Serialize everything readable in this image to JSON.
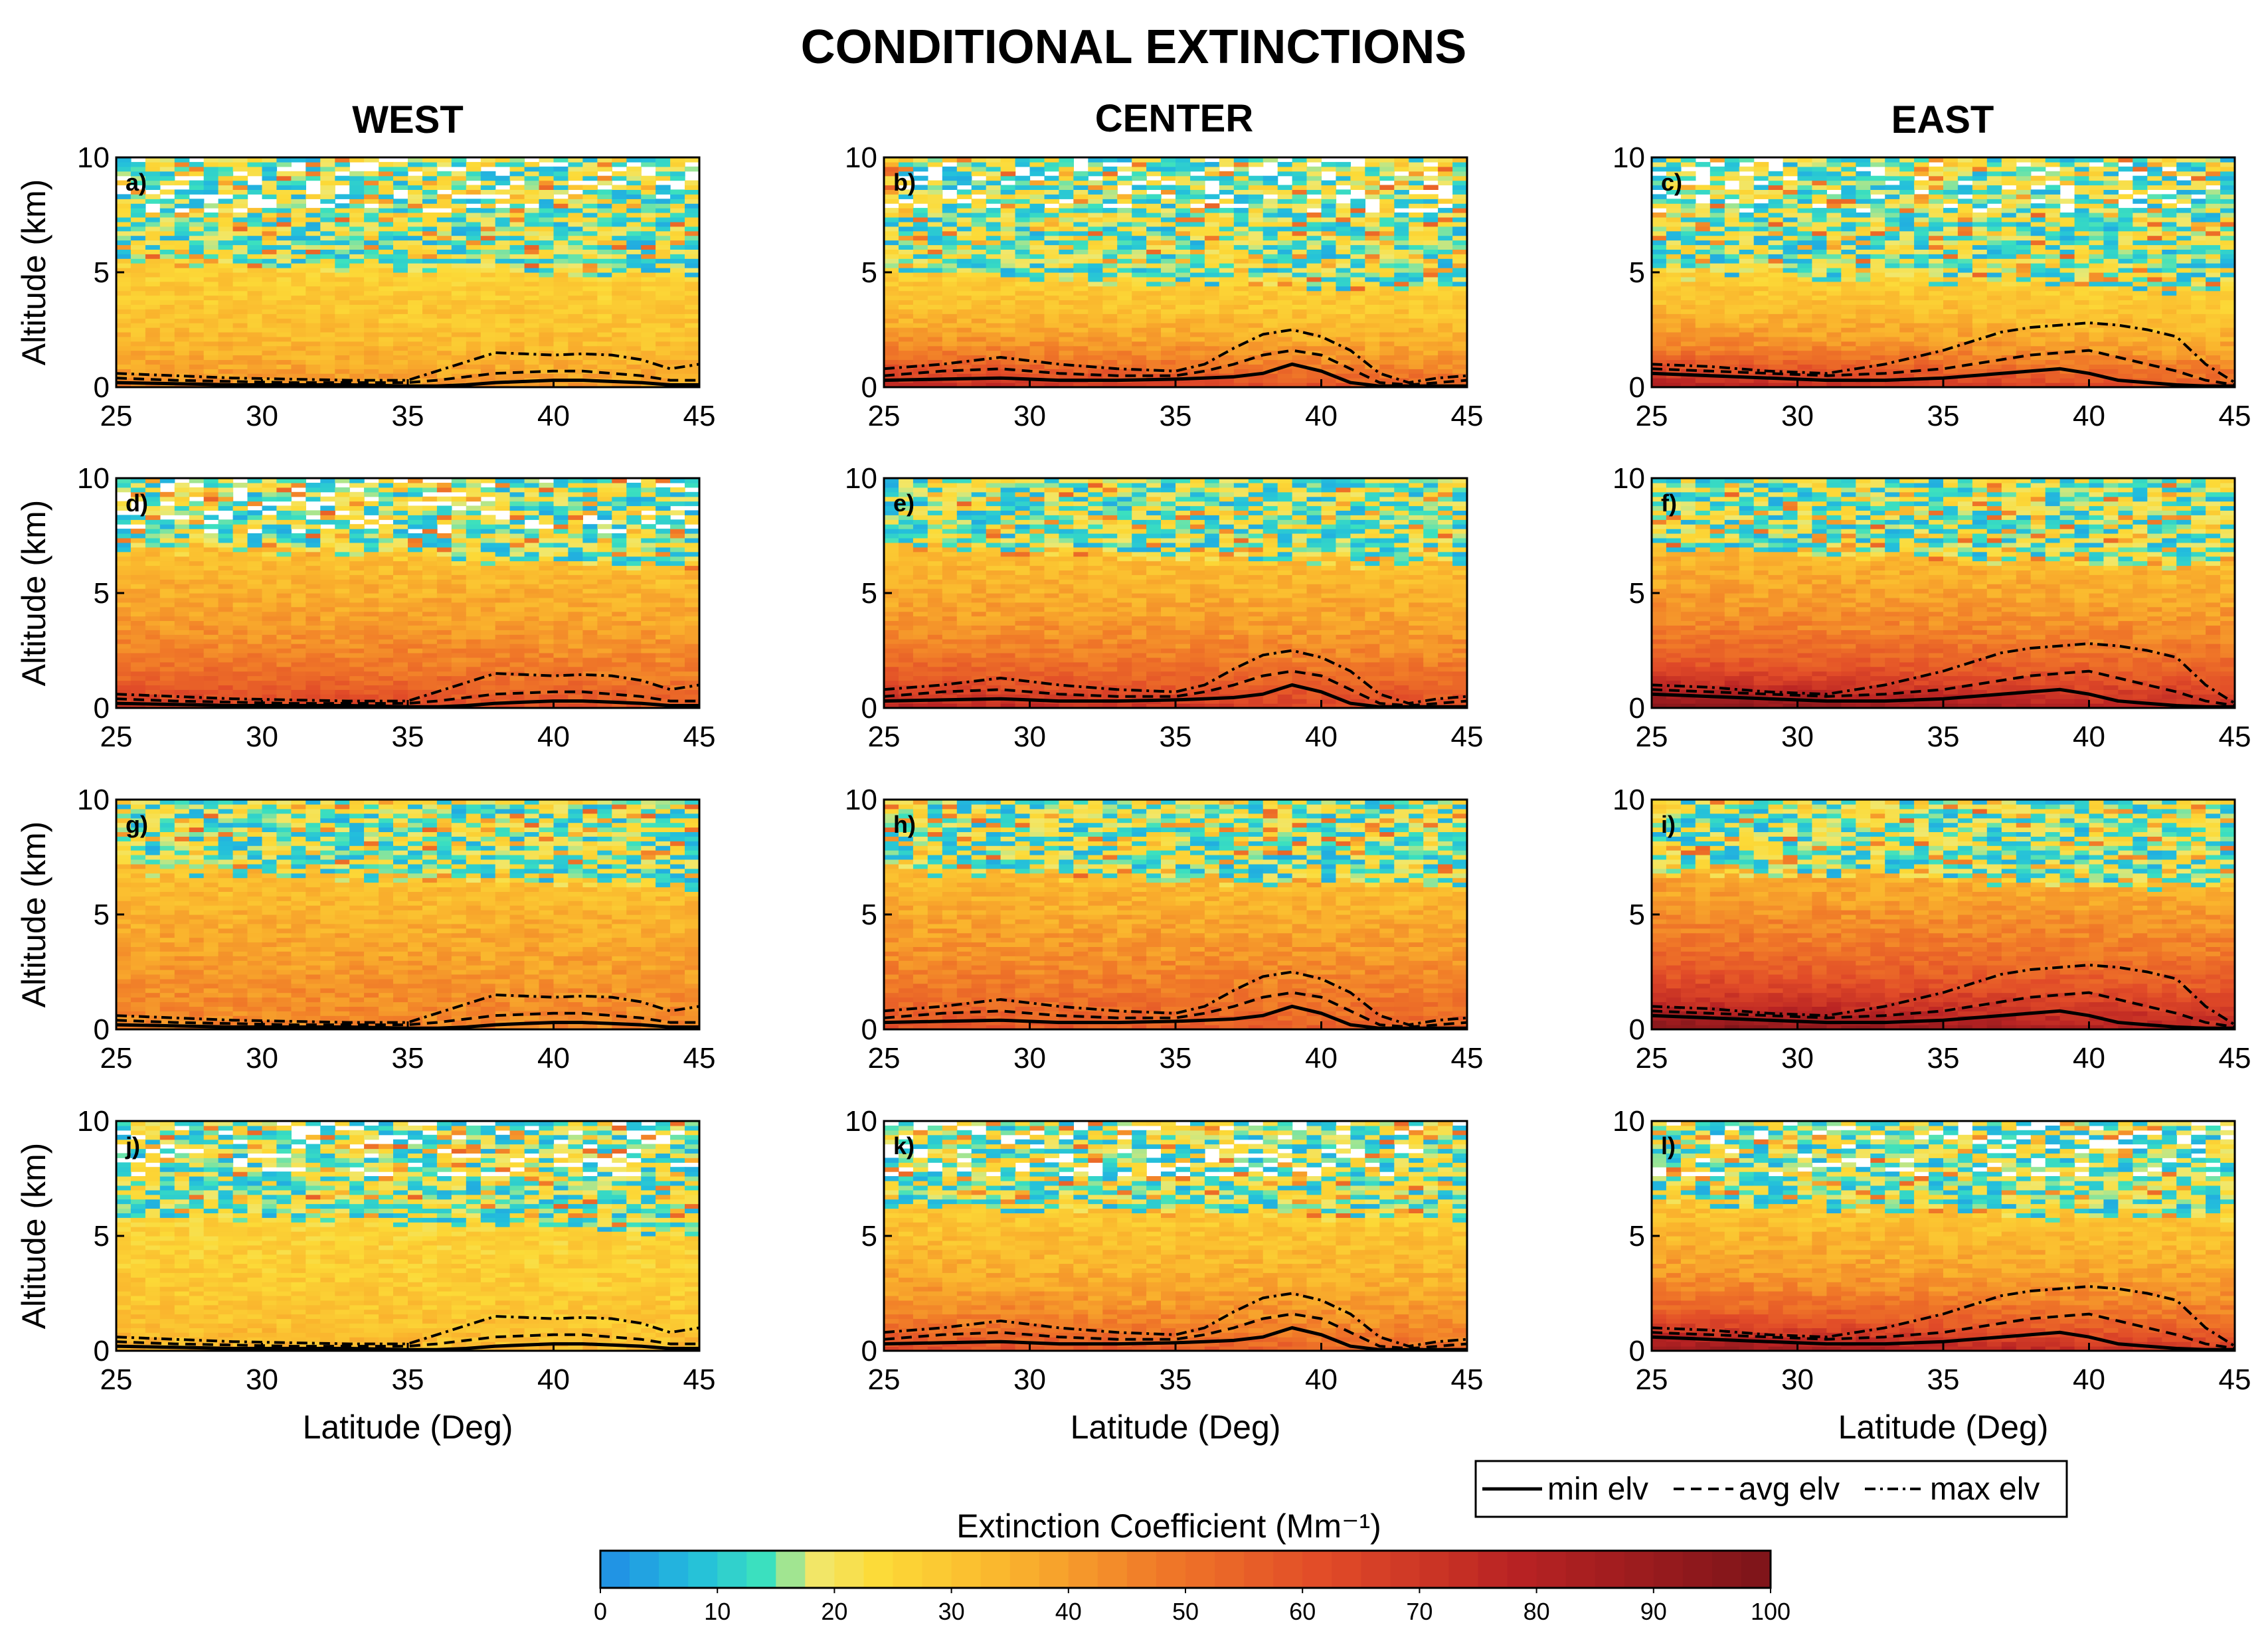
{
  "chart_data": {
    "type": "heatmap",
    "title": "CONDITIONAL EXTINCTIONS",
    "column_titles": [
      "WEST",
      "CENTER",
      "EAST"
    ],
    "xlabel": "Latitude (Deg)",
    "ylabel": "Altitude (km)",
    "xlim": [
      25,
      45
    ],
    "ylim": [
      0,
      10
    ],
    "xticks": [
      "25",
      "30",
      "35",
      "40",
      "45"
    ],
    "yticks": [
      "0",
      "5",
      "10"
    ],
    "colorbar": {
      "label": "Extinction Coefficient (Mm⁻¹)",
      "range": [
        0,
        100
      ],
      "ticks": [
        "0",
        "10",
        "20",
        "30",
        "40",
        "50",
        "60",
        "70",
        "80",
        "90",
        "100"
      ]
    },
    "legend": {
      "placement": "bottom-right",
      "entries": [
        {
          "label": "min elv",
          "style": "solid"
        },
        {
          "label": "avg elv",
          "style": "dashed"
        },
        {
          "label": "max elv",
          "style": "dashdot"
        }
      ]
    },
    "elevation_lat": [
      25,
      27,
      29,
      31,
      33,
      35,
      36,
      37,
      38,
      39,
      40,
      41,
      42,
      43,
      44,
      45
    ],
    "elevation": {
      "WEST": {
        "min": [
          0.2,
          0.15,
          0.1,
          0.1,
          0.1,
          0.05,
          0.05,
          0.1,
          0.2,
          0.25,
          0.3,
          0.3,
          0.25,
          0.2,
          0.1,
          0.1
        ],
        "avg": [
          0.4,
          0.3,
          0.25,
          0.2,
          0.2,
          0.2,
          0.3,
          0.45,
          0.6,
          0.65,
          0.7,
          0.7,
          0.6,
          0.5,
          0.3,
          0.3
        ],
        "max": [
          0.6,
          0.5,
          0.4,
          0.35,
          0.3,
          0.3,
          0.7,
          1.1,
          1.5,
          1.45,
          1.4,
          1.45,
          1.4,
          1.2,
          0.8,
          1.0
        ]
      },
      "CENTER": {
        "min": [
          0.3,
          0.35,
          0.4,
          0.3,
          0.3,
          0.35,
          0.4,
          0.45,
          0.6,
          1.0,
          0.7,
          0.2,
          0.05,
          0.05,
          0.05,
          0.05
        ],
        "avg": [
          0.5,
          0.7,
          0.8,
          0.6,
          0.5,
          0.5,
          0.7,
          1.0,
          1.4,
          1.6,
          1.4,
          0.8,
          0.2,
          0.1,
          0.2,
          0.3
        ],
        "max": [
          0.8,
          1.0,
          1.3,
          1.0,
          0.8,
          0.7,
          1.0,
          1.7,
          2.3,
          2.5,
          2.2,
          1.6,
          0.6,
          0.2,
          0.4,
          0.5
        ]
      },
      "EAST": {
        "min": [
          0.6,
          0.5,
          0.4,
          0.3,
          0.3,
          0.4,
          0.5,
          0.6,
          0.7,
          0.8,
          0.6,
          0.3,
          0.2,
          0.1,
          0.05,
          0.05
        ],
        "avg": [
          0.8,
          0.7,
          0.6,
          0.5,
          0.6,
          0.8,
          1.0,
          1.2,
          1.4,
          1.5,
          1.6,
          1.3,
          1.0,
          0.7,
          0.3,
          0.1
        ],
        "max": [
          1.0,
          0.9,
          0.7,
          0.6,
          1.0,
          1.6,
          2.0,
          2.4,
          2.6,
          2.7,
          2.8,
          2.7,
          2.5,
          2.2,
          1.0,
          0.2
        ]
      }
    },
    "panels": [
      {
        "label": "a)",
        "column": "WEST",
        "row": 1,
        "tropopause_km": 5.5,
        "surface_peak": 45,
        "column_mean": 32,
        "gap_top": true
      },
      {
        "label": "b)",
        "column": "CENTER",
        "row": 1,
        "tropopause_km": 5.0,
        "surface_peak": 80,
        "column_mean": 30,
        "gap_top": true
      },
      {
        "label": "c)",
        "column": "EAST",
        "row": 1,
        "tropopause_km": 5.0,
        "surface_peak": 85,
        "column_mean": 30,
        "gap_top": true
      },
      {
        "label": "d)",
        "column": "WEST",
        "row": 2,
        "tropopause_km": 7.0,
        "surface_peak": 70,
        "column_mean": 45,
        "gap_top": true
      },
      {
        "label": "e)",
        "column": "CENTER",
        "row": 2,
        "tropopause_km": 7.0,
        "surface_peak": 80,
        "column_mean": 45,
        "gap_top": false
      },
      {
        "label": "f)",
        "column": "EAST",
        "row": 2,
        "tropopause_km": 7.0,
        "surface_peak": 100,
        "column_mean": 48,
        "gap_top": false
      },
      {
        "label": "g)",
        "column": "WEST",
        "row": 3,
        "tropopause_km": 7.0,
        "surface_peak": 45,
        "column_mean": 45,
        "gap_top": false
      },
      {
        "label": "h)",
        "column": "CENTER",
        "row": 3,
        "tropopause_km": 7.0,
        "surface_peak": 60,
        "column_mean": 48,
        "gap_top": false
      },
      {
        "label": "i)",
        "column": "EAST",
        "row": 3,
        "tropopause_km": 7.0,
        "surface_peak": 100,
        "column_mean": 55,
        "gap_top": false
      },
      {
        "label": "j)",
        "column": "WEST",
        "row": 4,
        "tropopause_km": 6.0,
        "surface_peak": 35,
        "column_mean": 30,
        "gap_top": true
      },
      {
        "label": "k)",
        "column": "CENTER",
        "row": 4,
        "tropopause_km": 6.5,
        "surface_peak": 65,
        "column_mean": 38,
        "gap_top": true
      },
      {
        "label": "l)",
        "column": "EAST",
        "row": 4,
        "tropopause_km": 6.5,
        "surface_peak": 95,
        "column_mean": 40,
        "gap_top": true
      }
    ]
  }
}
